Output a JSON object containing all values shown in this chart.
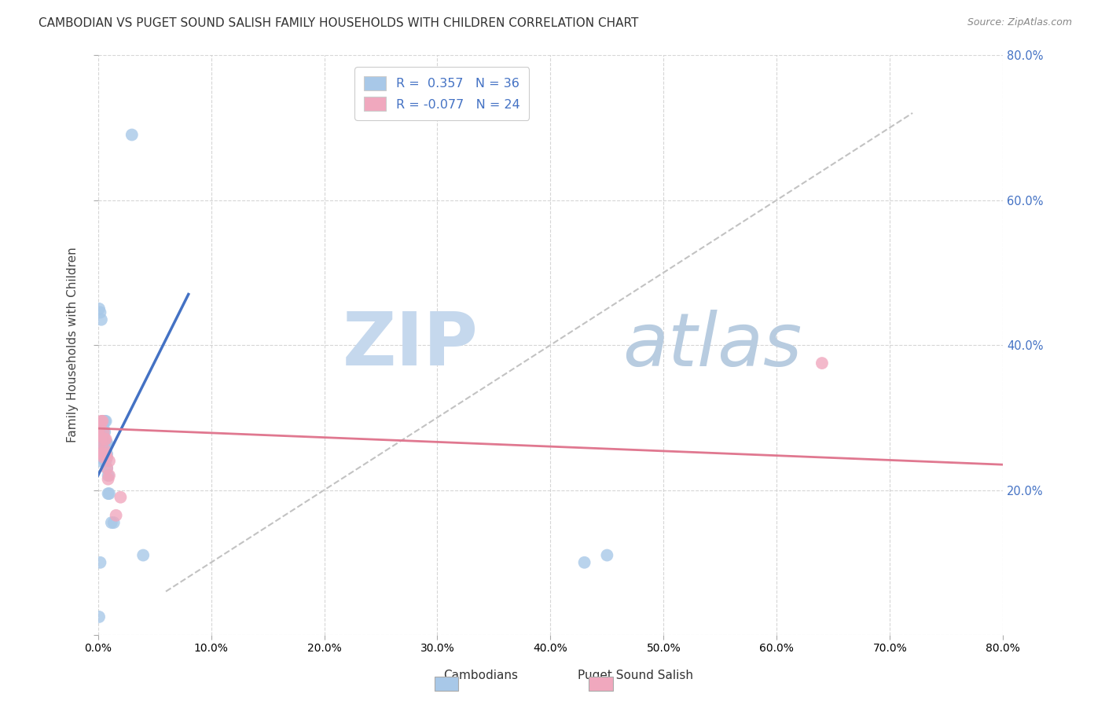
{
  "title": "CAMBODIAN VS PUGET SOUND SALISH FAMILY HOUSEHOLDS WITH CHILDREN CORRELATION CHART",
  "source": "Source: ZipAtlas.com",
  "ylabel": "Family Households with Children",
  "xlim": [
    0.0,
    0.8
  ],
  "ylim": [
    0.0,
    0.8
  ],
  "xticks": [
    0.0,
    0.1,
    0.2,
    0.3,
    0.4,
    0.5,
    0.6,
    0.7,
    0.8
  ],
  "yticks": [
    0.0,
    0.2,
    0.4,
    0.6,
    0.8
  ],
  "legend_r1": "R =  0.357",
  "legend_n1": "N = 36",
  "legend_r2": "R = -0.077",
  "legend_n2": "N = 24",
  "cambodian_color": "#a8c8e8",
  "puget_color": "#f0a8be",
  "trend_blue": "#4472c4",
  "trend_pink": "#e07890",
  "diagonal_color": "#b8b8b8",
  "background_color": "#ffffff",
  "grid_color": "#cccccc",
  "watermark_zip_color": "#c5d8ed",
  "watermark_atlas_color": "#b8cce0",
  "cambodian_x": [
    0.001,
    0.001,
    0.001,
    0.002,
    0.002,
    0.002,
    0.002,
    0.003,
    0.003,
    0.003,
    0.003,
    0.003,
    0.004,
    0.004,
    0.004,
    0.005,
    0.005,
    0.005,
    0.005,
    0.006,
    0.006,
    0.006,
    0.006,
    0.007,
    0.007,
    0.007,
    0.008,
    0.008,
    0.008,
    0.009,
    0.009,
    0.01,
    0.012,
    0.014,
    0.03,
    0.001
  ],
  "cambodian_y": [
    0.24,
    0.25,
    0.26,
    0.255,
    0.265,
    0.27,
    0.275,
    0.26,
    0.265,
    0.27,
    0.28,
    0.29,
    0.255,
    0.27,
    0.28,
    0.255,
    0.265,
    0.275,
    0.285,
    0.24,
    0.26,
    0.28,
    0.295,
    0.24,
    0.265,
    0.295,
    0.23,
    0.25,
    0.265,
    0.195,
    0.22,
    0.195,
    0.155,
    0.155,
    0.69,
    0.025
  ],
  "cambodian_x2": [
    0.001,
    0.002,
    0.003,
    0.004,
    0.002,
    0.04,
    0.43,
    0.45
  ],
  "cambodian_y2": [
    0.45,
    0.445,
    0.435,
    0.295,
    0.1,
    0.11,
    0.1,
    0.11
  ],
  "puget_x": [
    0.001,
    0.001,
    0.002,
    0.002,
    0.002,
    0.003,
    0.003,
    0.003,
    0.004,
    0.004,
    0.005,
    0.005,
    0.006,
    0.006,
    0.007,
    0.007,
    0.008,
    0.008,
    0.009,
    0.01,
    0.01,
    0.016,
    0.02,
    0.64
  ],
  "puget_y": [
    0.275,
    0.285,
    0.255,
    0.275,
    0.29,
    0.25,
    0.27,
    0.295,
    0.25,
    0.295,
    0.245,
    0.28,
    0.255,
    0.27,
    0.25,
    0.27,
    0.23,
    0.245,
    0.215,
    0.22,
    0.24,
    0.165,
    0.19,
    0.375
  ],
  "blue_trend_x": [
    0.0,
    0.08
  ],
  "blue_trend_y": [
    0.22,
    0.47
  ],
  "pink_trend_x": [
    0.0,
    0.8
  ],
  "pink_trend_y": [
    0.285,
    0.235
  ]
}
